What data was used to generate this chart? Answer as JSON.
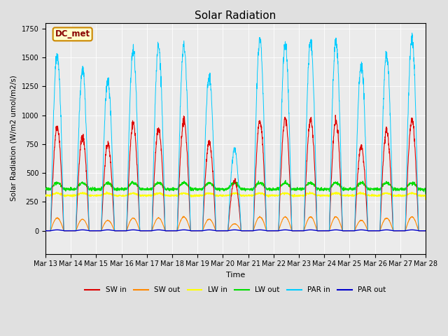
{
  "title": "Solar Radiation",
  "ylabel": "Solar Radiation (W/m2 umol/m2/s)",
  "xlabel": "Time",
  "ylim": [
    -200,
    1800
  ],
  "xlim": [
    0,
    15
  ],
  "fig_bg_color": "#e0e0e0",
  "plot_bg_color": "#ebebeb",
  "annotation_text": "DC_met",
  "annotation_box_color": "#ffffcc",
  "annotation_box_edgecolor": "#cc8800",
  "xtick_labels": [
    "Mar 13",
    "Mar 14",
    "Mar 15",
    "Mar 16",
    "Mar 17",
    "Mar 18",
    "Mar 19",
    "Mar 20",
    "Mar 21",
    "Mar 22",
    "Mar 23",
    "Mar 24",
    "Mar 25",
    "Mar 26",
    "Mar 27",
    "Mar 28"
  ],
  "series": {
    "SW_in": {
      "color": "#dd0000",
      "label": "SW in"
    },
    "SW_out": {
      "color": "#ff8800",
      "label": "SW out"
    },
    "LW_in": {
      "color": "#ffff00",
      "label": "LW in"
    },
    "LW_out": {
      "color": "#00dd00",
      "label": "LW out"
    },
    "PAR_in": {
      "color": "#00ccff",
      "label": "PAR in"
    },
    "PAR_out": {
      "color": "#0000cc",
      "label": "PAR out"
    }
  },
  "n_days": 15,
  "pts_per_day": 144,
  "sw_peaks": [
    900,
    820,
    750,
    930,
    880,
    950,
    760,
    430,
    950,
    970,
    960,
    950,
    720,
    870,
    960
  ],
  "par_peaks": [
    1520,
    1390,
    1300,
    1560,
    1590,
    1600,
    1340,
    700,
    1650,
    1610,
    1640,
    1640,
    1450,
    1530,
    1660
  ],
  "sw_out_peaks": [
    110,
    100,
    90,
    110,
    110,
    120,
    100,
    60,
    120,
    120,
    120,
    120,
    90,
    110,
    120
  ]
}
